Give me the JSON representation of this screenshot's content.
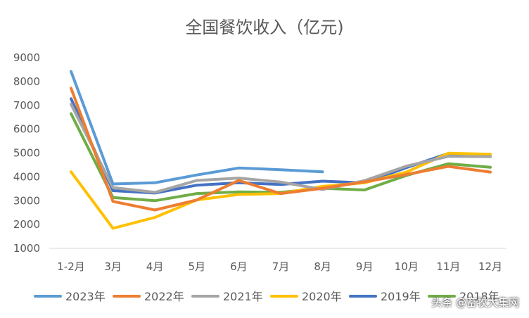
{
  "chart_data": {
    "type": "line",
    "title": "全国餐饮收入（亿元)",
    "xlabel": "",
    "ylabel": "",
    "categories": [
      "1-2月",
      "3月",
      "4月",
      "5月",
      "6月",
      "7月",
      "8月",
      "9月",
      "10月",
      "11月",
      "12月"
    ],
    "ylim": [
      1000,
      9000
    ],
    "yticks": [
      1000,
      2000,
      3000,
      4000,
      5000,
      6000,
      7000,
      8000,
      9000
    ],
    "grid": false,
    "legend_position": "bottom",
    "series": [
      {
        "name": "2023年",
        "color": "#5B9BD5",
        "values": [
          8420,
          3700,
          3750,
          4080,
          4370,
          4300,
          4210,
          null,
          null,
          null,
          null
        ]
      },
      {
        "name": "2022年",
        "color": "#ED7D31",
        "values": [
          7720,
          2970,
          2610,
          3030,
          3850,
          3300,
          3520,
          3790,
          4100,
          4440,
          4200
        ]
      },
      {
        "name": "2021年",
        "color": "#A5A5A5",
        "values": [
          7050,
          3550,
          3350,
          3850,
          3950,
          3780,
          3470,
          3840,
          4450,
          4860,
          4850
        ]
      },
      {
        "name": "2020年",
        "color": "#FFC000",
        "values": [
          4210,
          1840,
          2300,
          3030,
          3260,
          3300,
          3600,
          3750,
          4200,
          4990,
          4950
        ]
      },
      {
        "name": "2019年",
        "color": "#4472C4",
        "values": [
          7280,
          3420,
          3320,
          3650,
          3750,
          3680,
          3820,
          3750,
          4390,
          4980,
          4850
        ]
      },
      {
        "name": "2018年",
        "color": "#70AD47",
        "values": [
          6650,
          3130,
          3000,
          3300,
          3370,
          3350,
          3520,
          3450,
          4060,
          4550,
          4400
        ]
      }
    ]
  },
  "watermark": "头条 @畜牧大集网"
}
